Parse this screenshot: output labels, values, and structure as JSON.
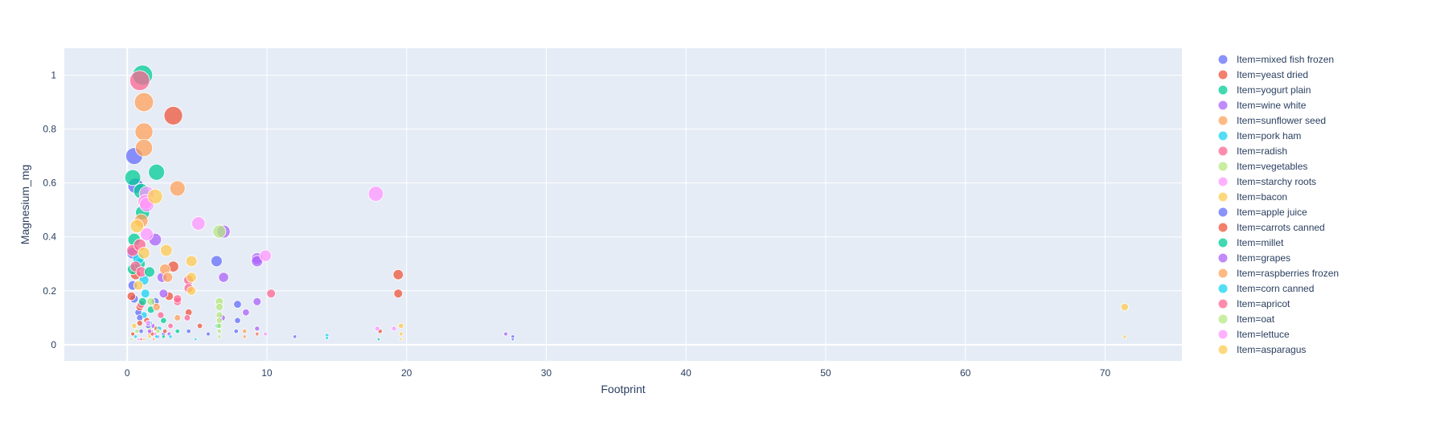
{
  "chart_data": {
    "type": "scatter",
    "subtype": "bubble",
    "xlabel": "Footprint",
    "ylabel": "Magnesium_mg",
    "xlim": [
      -4.5,
      75.5
    ],
    "ylim": [
      -0.06,
      1.1
    ],
    "xticks": [
      0,
      10,
      20,
      30,
      40,
      50,
      60,
      70
    ],
    "yticks": [
      0,
      0.2,
      0.4,
      0.6,
      0.8,
      1
    ],
    "grid": true,
    "legend_position": "right",
    "plot_bg": "#e5ecf6",
    "series": [
      {
        "name": "Item=mixed fish frozen",
        "color": "#636efa",
        "points": [
          [
            0.5,
            0.7
          ],
          [
            0.6,
            0.59
          ],
          [
            0.4,
            0.34
          ],
          [
            0.5,
            0.17
          ],
          [
            0.8,
            0.12
          ],
          [
            1.0,
            0.05
          ],
          [
            2.0,
            0.16
          ],
          [
            2.6,
            0.04
          ],
          [
            4.4,
            0.05
          ],
          [
            5.8,
            0.04
          ],
          [
            6.4,
            0.31
          ],
          [
            7.9,
            0.15
          ],
          [
            7.9,
            0.09
          ],
          [
            7.8,
            0.05
          ],
          [
            12.0,
            0.03
          ],
          [
            27.6,
            0.03
          ],
          [
            27.6,
            0.02
          ]
        ]
      },
      {
        "name": "Item=yeast dried",
        "color": "#EF553B",
        "points": [
          [
            3.3,
            0.85
          ],
          [
            0.6,
            0.26
          ],
          [
            0.9,
            0.14
          ],
          [
            1.4,
            0.09
          ],
          [
            2.1,
            0.06
          ],
          [
            3.0,
            0.18
          ],
          [
            3.3,
            0.29
          ],
          [
            4.4,
            0.12
          ],
          [
            5.2,
            0.07
          ],
          [
            19.4,
            0.26
          ],
          [
            19.4,
            0.19
          ],
          [
            18.1,
            0.05
          ],
          [
            2.7,
            0.05
          ],
          [
            0.4,
            0.04
          ]
        ]
      },
      {
        "name": "Item=yogurt plain",
        "color": "#00cc96",
        "points": [
          [
            1.1,
            1.0
          ],
          [
            0.4,
            0.62
          ],
          [
            2.1,
            0.64
          ],
          [
            1.0,
            0.57
          ],
          [
            1.1,
            0.49
          ],
          [
            0.5,
            0.39
          ],
          [
            0.4,
            0.28
          ],
          [
            0.9,
            0.3
          ],
          [
            1.7,
            0.13
          ],
          [
            2.6,
            0.09
          ],
          [
            3.6,
            0.05
          ],
          [
            6.5,
            0.07
          ],
          [
            18.0,
            0.02
          ]
        ]
      },
      {
        "name": "Item=wine white",
        "color": "#ab63fa",
        "points": [
          [
            2.0,
            0.39
          ],
          [
            2.5,
            0.25
          ],
          [
            6.9,
            0.42
          ],
          [
            6.9,
            0.25
          ],
          [
            9.3,
            0.32
          ],
          [
            9.3,
            0.31
          ],
          [
            9.3,
            0.16
          ],
          [
            8.5,
            0.12
          ],
          [
            6.8,
            0.1
          ],
          [
            9.3,
            0.06
          ],
          [
            9.3,
            0.04
          ],
          [
            27.1,
            0.04
          ],
          [
            1.8,
            0.07
          ],
          [
            3.0,
            0.04
          ]
        ]
      },
      {
        "name": "Item=sunflower seed",
        "color": "#FFA15A",
        "points": [
          [
            1.2,
            0.9
          ],
          [
            1.2,
            0.79
          ],
          [
            1.2,
            0.73
          ],
          [
            3.6,
            0.58
          ],
          [
            1.3,
            0.53
          ],
          [
            1.0,
            0.46
          ],
          [
            2.7,
            0.28
          ],
          [
            2.1,
            0.14
          ],
          [
            3.6,
            0.1
          ],
          [
            8.4,
            0.05
          ],
          [
            8.4,
            0.03
          ],
          [
            9.3,
            0.04
          ],
          [
            1.6,
            0.04
          ]
        ]
      },
      {
        "name": "Item=pork ham",
        "color": "#19d3f3",
        "points": [
          [
            0.8,
            0.32
          ],
          [
            1.2,
            0.24
          ],
          [
            1.2,
            0.11
          ],
          [
            1.6,
            0.08
          ],
          [
            2.3,
            0.06
          ],
          [
            3.1,
            0.03
          ],
          [
            4.9,
            0.02
          ],
          [
            14.3,
            0.035
          ],
          [
            14.3,
            0.025
          ],
          [
            0.6,
            0.03
          ]
        ]
      },
      {
        "name": "Item=radish",
        "color": "#FF6692",
        "points": [
          [
            0.9,
            0.98
          ],
          [
            0.4,
            0.35
          ],
          [
            0.9,
            0.37
          ],
          [
            0.6,
            0.29
          ],
          [
            1.0,
            0.27
          ],
          [
            1.0,
            0.15
          ],
          [
            1.7,
            0.05
          ],
          [
            2.4,
            0.11
          ],
          [
            4.4,
            0.24
          ],
          [
            4.4,
            0.21
          ],
          [
            4.3,
            0.1
          ],
          [
            10.3,
            0.19
          ],
          [
            3.6,
            0.16
          ],
          [
            3.1,
            0.07
          ]
        ]
      },
      {
        "name": "Item=vegetables",
        "color": "#B6E880",
        "points": [
          [
            6.6,
            0.42
          ],
          [
            6.6,
            0.16
          ],
          [
            6.6,
            0.14
          ],
          [
            6.6,
            0.11
          ],
          [
            6.6,
            0.09
          ],
          [
            6.6,
            0.07
          ],
          [
            6.6,
            0.05
          ],
          [
            6.6,
            0.03
          ],
          [
            1.6,
            0.06
          ],
          [
            2.2,
            0.05
          ],
          [
            0.7,
            0.05
          ]
        ]
      },
      {
        "name": "Item=starchy roots",
        "color": "#FF97FF",
        "points": [
          [
            1.4,
            0.56
          ],
          [
            1.3,
            0.53
          ],
          [
            1.4,
            0.52
          ],
          [
            1.4,
            0.41
          ],
          [
            5.1,
            0.45
          ],
          [
            9.9,
            0.33
          ],
          [
            17.8,
            0.56
          ],
          [
            17.9,
            0.06
          ],
          [
            19.1,
            0.06
          ],
          [
            9.9,
            0.04
          ],
          [
            2.0,
            0.04
          ]
        ]
      },
      {
        "name": "Item=bacon",
        "color": "#FECB52",
        "points": [
          [
            2.0,
            0.55
          ],
          [
            1.2,
            0.34
          ],
          [
            2.8,
            0.35
          ],
          [
            4.6,
            0.31
          ],
          [
            4.6,
            0.25
          ],
          [
            4.6,
            0.2
          ],
          [
            71.4,
            0.14
          ],
          [
            71.4,
            0.03
          ],
          [
            19.6,
            0.07
          ],
          [
            19.6,
            0.04
          ],
          [
            19.6,
            0.02
          ],
          [
            0.5,
            0.07
          ],
          [
            1.6,
            0.03
          ]
        ]
      },
      {
        "name": "Item=apple juice",
        "color": "#636efa",
        "points": [
          [
            0.4,
            0.22
          ],
          [
            0.9,
            0.1
          ],
          [
            1.5,
            0.07
          ],
          [
            2.2,
            0.03
          ]
        ]
      },
      {
        "name": "Item=carrots canned",
        "color": "#EF553B",
        "points": [
          [
            0.3,
            0.18
          ],
          [
            0.9,
            0.08
          ],
          [
            1.8,
            0.04
          ]
        ]
      },
      {
        "name": "Item=millet",
        "color": "#00cc96",
        "points": [
          [
            1.6,
            0.27
          ],
          [
            1.1,
            0.16
          ],
          [
            2.6,
            0.03
          ]
        ]
      },
      {
        "name": "Item=grapes",
        "color": "#ab63fa",
        "points": [
          [
            2.6,
            0.19
          ],
          [
            1.6,
            0.05
          ]
        ]
      },
      {
        "name": "Item=raspberries frozen",
        "color": "#FFA15A",
        "points": [
          [
            2.9,
            0.25
          ],
          [
            1.9,
            0.02
          ]
        ]
      },
      {
        "name": "Item=corn canned",
        "color": "#19d3f3",
        "points": [
          [
            1.3,
            0.19
          ],
          [
            2.1,
            0.03
          ]
        ]
      },
      {
        "name": "Item=apricot",
        "color": "#FF6692",
        "points": [
          [
            3.6,
            0.17
          ],
          [
            1.0,
            0.02
          ]
        ]
      },
      {
        "name": "Item=oat",
        "color": "#B6E880",
        "points": [
          [
            1.7,
            0.16
          ],
          [
            0.3,
            0.02
          ]
        ]
      },
      {
        "name": "Item=lettuce",
        "color": "#FF97FF",
        "points": [
          [
            1.5,
            0.08
          ],
          [
            0.8,
            0.02
          ]
        ]
      },
      {
        "name": "Item=asparagus",
        "color": "#FECB52",
        "points": [
          [
            0.7,
            0.44
          ],
          [
            0.8,
            0.22
          ],
          [
            1.2,
            0.02
          ]
        ]
      }
    ]
  }
}
